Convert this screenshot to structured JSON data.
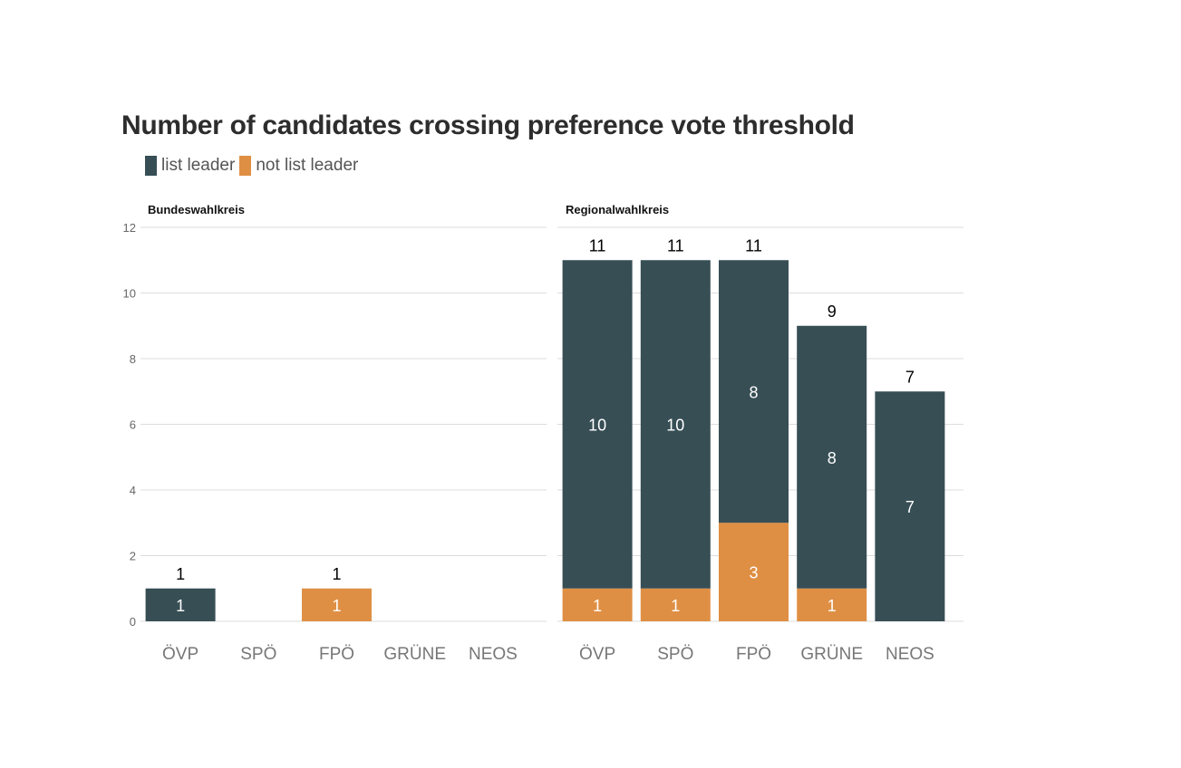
{
  "chart_data": {
    "type": "bar",
    "stacked": true,
    "title": "Number of candidates crossing preference vote threshold",
    "legend_position": "top-left",
    "grid": true,
    "ylim": [
      0,
      12
    ],
    "yticks": [
      0,
      2,
      4,
      6,
      8,
      10,
      12
    ],
    "colors": {
      "list leader": "#374e55",
      "not list leader": "#df8f44"
    },
    "facets": [
      {
        "label": "Bundeswahlkreis",
        "categories": [
          "ÖVP",
          "SPÖ",
          "FPÖ",
          "GRÜNE",
          "NEOS"
        ],
        "series": [
          {
            "name": "list leader",
            "values": [
              1,
              0,
              0,
              0,
              0
            ]
          },
          {
            "name": "not list leader",
            "values": [
              0,
              0,
              1,
              0,
              0
            ]
          }
        ],
        "totals": [
          1,
          0,
          1,
          0,
          0
        ]
      },
      {
        "label": "Regionalwahlkreis",
        "categories": [
          "ÖVP",
          "SPÖ",
          "FPÖ",
          "GRÜNE",
          "NEOS"
        ],
        "series": [
          {
            "name": "list leader",
            "values": [
              10,
              10,
              8,
              8,
              7
            ]
          },
          {
            "name": "not list leader",
            "values": [
              1,
              1,
              3,
              1,
              0
            ]
          }
        ],
        "totals": [
          11,
          11,
          11,
          9,
          7
        ]
      }
    ]
  }
}
